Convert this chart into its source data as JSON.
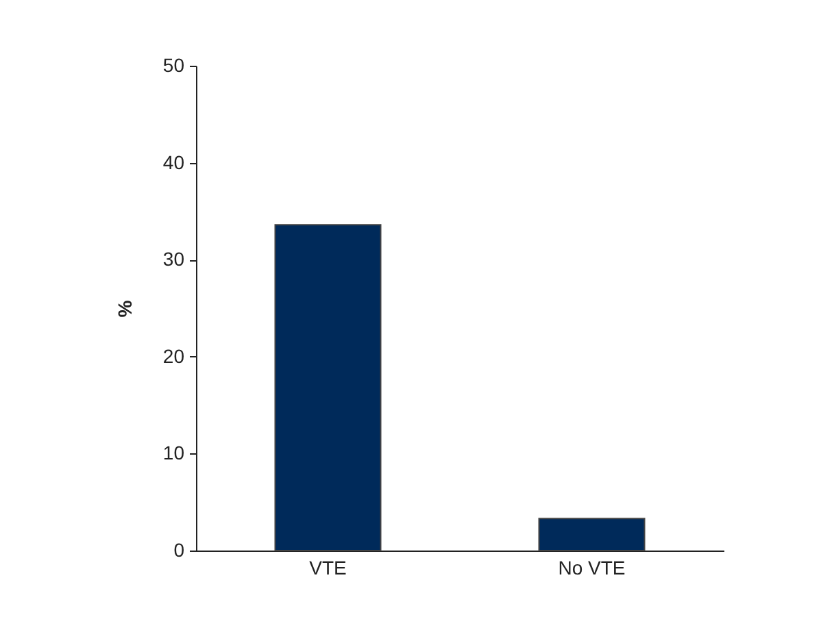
{
  "chart_data": {
    "type": "bar",
    "ylabel": "%",
    "categories": [
      "VTE",
      "No VTE"
    ],
    "values": [
      33.6,
      3.3
    ],
    "color": "#002a5a",
    "ylim": [
      0,
      50
    ],
    "yticks": [
      0,
      10,
      20,
      30,
      40,
      50
    ],
    "grid": false
  }
}
